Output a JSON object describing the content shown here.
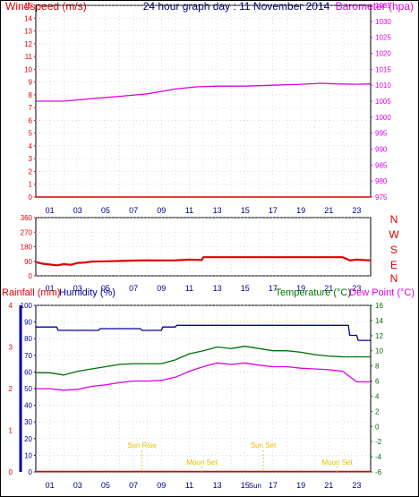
{
  "header": {
    "windspeed_label": "Windspeed (m/s)",
    "title": "24 hour graph day : 11 November 2014",
    "barometer_label": "Barometer (hpa)"
  },
  "hour_labels": [
    "01",
    "03",
    "05",
    "07",
    "09",
    "11",
    "13",
    "15",
    "17",
    "19",
    "21",
    "23"
  ],
  "panel_labels": {
    "rainfall": "Rainfall (mm)",
    "humidity": "Humidity (%)",
    "temperature": "Temperature (°C)",
    "dew_point": "Dew Point (°C)"
  },
  "colors": {
    "wind": "#e00000",
    "barometer": "#e000e0",
    "humidity": "#0000a0",
    "temperature": "#007000",
    "dewpoint": "#e000e0",
    "rainfall": "#e00000",
    "events": "#e8c000",
    "grid": "#c8c8c8"
  },
  "chart_data": [
    {
      "type": "line",
      "name": "wind-and-barometer",
      "x_ticks": [
        "01",
        "03",
        "05",
        "07",
        "09",
        "11",
        "13",
        "15",
        "17",
        "19",
        "21",
        "23"
      ],
      "series": [
        {
          "name": "Windspeed (m/s)",
          "axis": "left",
          "x": [
            0,
            24
          ],
          "values": [
            0,
            0
          ]
        },
        {
          "name": "Barometer (hpa)",
          "axis": "right",
          "x": [
            0,
            2,
            4,
            6,
            8,
            10,
            11.5,
            13,
            15,
            17,
            19,
            20.5,
            21.5,
            23,
            24
          ],
          "values": [
            1005.0,
            1005.0,
            1005.8,
            1006.5,
            1007.3,
            1008.8,
            1009.5,
            1009.7,
            1009.7,
            1010.0,
            1010.3,
            1010.6,
            1010.4,
            1010.3,
            1010.4
          ]
        }
      ],
      "y_left": {
        "range": [
          0,
          15
        ],
        "ticks": [
          "0",
          "1",
          "2",
          "3",
          "4",
          "5",
          "6",
          "7",
          "8",
          "9",
          "10",
          "11",
          "12",
          "13",
          "14",
          "15"
        ]
      },
      "y_right": {
        "range": [
          975,
          1035
        ],
        "ticks": [
          "975",
          "980",
          "985",
          "990",
          "995",
          "1000",
          "1005",
          "1010",
          "1015",
          "1020",
          "1025",
          "1030",
          "1035"
        ]
      }
    },
    {
      "type": "line",
      "name": "wind-direction",
      "x_ticks": [
        "01",
        "03",
        "05",
        "07",
        "09",
        "11",
        "13",
        "15",
        "17",
        "19",
        "21",
        "23"
      ],
      "series": [
        {
          "name": "Wind direction",
          "x": [
            0,
            0.5,
            1,
            1.5,
            2,
            2.5,
            3,
            3.5,
            4,
            5,
            6,
            7,
            8,
            9,
            10,
            11,
            11.9,
            12,
            22,
            22.5,
            23,
            24
          ],
          "values": [
            85,
            75,
            70,
            65,
            72,
            68,
            80,
            82,
            88,
            90,
            92,
            94,
            96,
            95,
            96,
            100,
            98,
            115,
            115,
            95,
            100,
            95
          ]
        }
      ],
      "y_left": {
        "range": [
          0,
          360
        ],
        "ticks": [
          "0",
          "90",
          "180",
          "270",
          "360"
        ]
      },
      "y_right_labels": [
        "N",
        "W",
        "S",
        "E",
        "N"
      ]
    },
    {
      "type": "line",
      "name": "humidity-temperature",
      "x_ticks": [
        "01",
        "03",
        "05",
        "07",
        "09",
        "11",
        "13",
        "15",
        "17",
        "19",
        "21",
        "23"
      ],
      "series": [
        {
          "name": "Humidity (%)",
          "axis": "left",
          "x": [
            0,
            1.5,
            1.6,
            4.5,
            4.6,
            7.5,
            7.6,
            9,
            9.1,
            10,
            10.1,
            22.4,
            22.5,
            23,
            23.1,
            24
          ],
          "values": [
            87,
            87,
            85,
            85,
            86,
            86,
            85,
            85,
            87,
            87,
            88,
            88,
            82,
            82,
            79,
            79
          ]
        },
        {
          "name": "Temperature (°C)",
          "axis": "right",
          "x": [
            0,
            1,
            2,
            3,
            4,
            5,
            6,
            7,
            8,
            9,
            10,
            11,
            12,
            13,
            14,
            15,
            16,
            17,
            18,
            19,
            20,
            21,
            22,
            23,
            24
          ],
          "values": [
            7.1,
            7.1,
            6.8,
            7.3,
            7.6,
            7.9,
            8.2,
            8.3,
            8.3,
            8.3,
            8.8,
            9.6,
            10.0,
            10.5,
            10.3,
            10.6,
            10.3,
            10.0,
            10.0,
            9.8,
            9.5,
            9.3,
            9.2,
            9.2,
            9.2
          ]
        },
        {
          "name": "Dew Point (°C)",
          "axis": "right",
          "x": [
            0,
            1,
            2,
            3,
            4,
            5,
            6,
            7,
            8,
            9,
            10,
            11,
            12,
            13,
            14,
            15,
            16,
            17,
            18,
            19,
            20,
            21,
            22,
            23,
            24
          ],
          "values": [
            5.0,
            5.0,
            4.8,
            4.9,
            5.3,
            5.5,
            5.8,
            6.0,
            6.0,
            6.1,
            6.5,
            7.3,
            7.9,
            8.4,
            8.2,
            8.4,
            8.1,
            7.9,
            7.9,
            7.7,
            7.6,
            7.5,
            7.3,
            5.9,
            5.9
          ]
        }
      ],
      "y_left": {
        "range": [
          0,
          100
        ],
        "ticks": [
          "0",
          "10",
          "20",
          "30",
          "40",
          "50",
          "60",
          "70",
          "80",
          "90",
          "100"
        ]
      },
      "y_right": {
        "range": [
          -6,
          16
        ],
        "ticks": [
          "-6",
          "-4",
          "-2",
          "0",
          "2",
          "4",
          "6",
          "8",
          "10",
          "12",
          "14",
          "16"
        ]
      },
      "rainfall_axis_ticks": [
        "0",
        "1",
        "2",
        "3",
        "4"
      ]
    }
  ],
  "events": [
    {
      "label": "Sun Rise",
      "hour": 7.6,
      "row": "upper"
    },
    {
      "label": "Moon Set",
      "hour": 11.9,
      "row": "lower"
    },
    {
      "label": "Sun Set",
      "hour": 16.3,
      "row": "upper"
    },
    {
      "label": "Moon Set",
      "hour": 21.6,
      "row": "lower"
    }
  ],
  "midday_marker": {
    "label": "Sun",
    "hour": 16.3
  }
}
